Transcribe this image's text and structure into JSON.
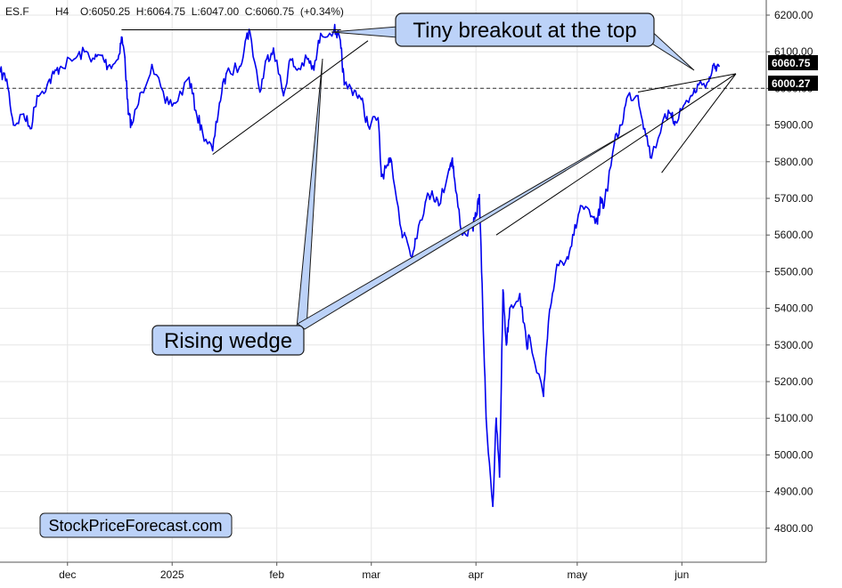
{
  "header": {
    "symbol": "ES.F",
    "timeframe": "H4",
    "ohlc": "O:6050.25  H:6064.75  L:6047.00  C:6060.75  (+0.34%)"
  },
  "colors": {
    "price_line": "#0000ee",
    "callout_fill": "#bcd2f8",
    "callout_border": "#1a1a1a",
    "badge_fill": "#000000",
    "grid": "#e6e6e6",
    "dashed_level": "#333333"
  },
  "callouts": {
    "breakout": "Tiny breakout at the top",
    "wedge": "Rising wedge"
  },
  "watermark": "StockPriceForecast.com",
  "chart_data": {
    "type": "line",
    "title": "",
    "xlabel": "",
    "ylabel": "",
    "ylim": [
      4760,
      6240
    ],
    "xlim": [
      "2024-11-11",
      "2025-06-26"
    ],
    "grid": true,
    "y_axis_position": "right",
    "y_ticks": [
      "6200.00",
      "6100.00",
      "6000.00",
      "5900.00",
      "5800.00",
      "5700.00",
      "5600.00",
      "5500.00",
      "5400.00",
      "5300.00",
      "5200.00",
      "5100.00",
      "5000.00",
      "4900.00",
      "4800.00"
    ],
    "x_ticks": [
      {
        "label": "dec",
        "date": "2024-12-01"
      },
      {
        "label": "2025",
        "date": "2025-01-01"
      },
      {
        "label": "feb",
        "date": "2025-02-01"
      },
      {
        "label": "mar",
        "date": "2025-03-01"
      },
      {
        "label": "apr",
        "date": "2025-04-01"
      },
      {
        "label": "may",
        "date": "2025-05-01"
      },
      {
        "label": "jun",
        "date": "2025-06-01"
      }
    ],
    "series": [
      {
        "color": "#0000ee",
        "points": [
          [
            "2024-11-11",
            6045
          ],
          [
            "2024-11-13",
            6025
          ],
          [
            "2024-11-15",
            5900
          ],
          [
            "2024-11-18",
            5930
          ],
          [
            "2024-11-20",
            5890
          ],
          [
            "2024-11-22",
            5980
          ],
          [
            "2024-11-25",
            6010
          ],
          [
            "2024-11-27",
            6040
          ],
          [
            "2024-11-29",
            6060
          ],
          [
            "2024-12-03",
            6080
          ],
          [
            "2024-12-06",
            6100
          ],
          [
            "2024-12-09",
            6080
          ],
          [
            "2024-12-11",
            6090
          ],
          [
            "2024-12-13",
            6060
          ],
          [
            "2024-12-16",
            6080
          ],
          [
            "2024-12-17",
            6140
          ],
          [
            "2024-12-18",
            6085
          ],
          [
            "2024-12-19",
            5930
          ],
          [
            "2024-12-20",
            5900
          ],
          [
            "2024-12-23",
            5990
          ],
          [
            "2024-12-26",
            6065
          ],
          [
            "2024-12-30",
            5960
          ],
          [
            "2025-01-02",
            5960
          ],
          [
            "2025-01-06",
            6030
          ],
          [
            "2025-01-08",
            5940
          ],
          [
            "2025-01-10",
            5880
          ],
          [
            "2025-01-13",
            5830
          ],
          [
            "2025-01-15",
            5960
          ],
          [
            "2025-01-17",
            6040
          ],
          [
            "2025-01-21",
            6060
          ],
          [
            "2025-01-23",
            6140
          ],
          [
            "2025-01-24",
            6155
          ],
          [
            "2025-01-27",
            5990
          ],
          [
            "2025-01-29",
            6080
          ],
          [
            "2025-01-31",
            6110
          ],
          [
            "2025-02-03",
            5980
          ],
          [
            "2025-02-05",
            6080
          ],
          [
            "2025-02-07",
            6050
          ],
          [
            "2025-02-10",
            6080
          ],
          [
            "2025-02-12",
            6050
          ],
          [
            "2025-02-14",
            6150
          ],
          [
            "2025-02-18",
            6160
          ],
          [
            "2025-02-19",
            6150
          ],
          [
            "2025-02-20",
            6110
          ],
          [
            "2025-02-21",
            6010
          ],
          [
            "2025-02-24",
            5995
          ],
          [
            "2025-02-26",
            5970
          ],
          [
            "2025-02-28",
            5900
          ],
          [
            "2025-03-03",
            5920
          ],
          [
            "2025-03-04",
            5760
          ],
          [
            "2025-03-06",
            5790
          ],
          [
            "2025-03-07",
            5800
          ],
          [
            "2025-03-10",
            5610
          ],
          [
            "2025-03-11",
            5600
          ],
          [
            "2025-03-13",
            5540
          ],
          [
            "2025-03-14",
            5590
          ],
          [
            "2025-03-17",
            5690
          ],
          [
            "2025-03-19",
            5720
          ],
          [
            "2025-03-21",
            5680
          ],
          [
            "2025-03-24",
            5780
          ],
          [
            "2025-03-25",
            5810
          ],
          [
            "2025-03-26",
            5720
          ],
          [
            "2025-03-28",
            5600
          ],
          [
            "2025-03-31",
            5620
          ],
          [
            "2025-04-01",
            5650
          ],
          [
            "2025-04-02",
            5710
          ],
          [
            "2025-04-03",
            5400
          ],
          [
            "2025-04-04",
            5100
          ],
          [
            "2025-04-06",
            4860
          ],
          [
            "2025-04-07",
            5100
          ],
          [
            "2025-04-08",
            4940
          ],
          [
            "2025-04-09",
            5450
          ],
          [
            "2025-04-10",
            5300
          ],
          [
            "2025-04-11",
            5400
          ],
          [
            "2025-04-14",
            5440
          ],
          [
            "2025-04-16",
            5300
          ],
          [
            "2025-04-17",
            5320
          ],
          [
            "2025-04-21",
            5160
          ],
          [
            "2025-04-22",
            5300
          ],
          [
            "2025-04-23",
            5400
          ],
          [
            "2025-04-25",
            5520
          ],
          [
            "2025-04-28",
            5540
          ],
          [
            "2025-04-30",
            5600
          ],
          [
            "2025-05-02",
            5680
          ],
          [
            "2025-05-05",
            5650
          ],
          [
            "2025-05-07",
            5630
          ],
          [
            "2025-05-08",
            5700
          ],
          [
            "2025-05-09",
            5680
          ],
          [
            "2025-05-12",
            5850
          ],
          [
            "2025-05-14",
            5900
          ],
          [
            "2025-05-16",
            5980
          ],
          [
            "2025-05-19",
            5980
          ],
          [
            "2025-05-21",
            5890
          ],
          [
            "2025-05-23",
            5810
          ],
          [
            "2025-05-27",
            5930
          ],
          [
            "2025-05-29",
            5920
          ],
          [
            "2025-05-30",
            5910
          ],
          [
            "2025-06-02",
            5960
          ],
          [
            "2025-06-04",
            5980
          ],
          [
            "2025-06-06",
            6010
          ],
          [
            "2025-06-09",
            6020
          ],
          [
            "2025-06-10",
            6050
          ],
          [
            "2025-06-11",
            6060
          ],
          [
            "2025-06-12",
            6060.75
          ]
        ]
      }
    ],
    "horizontal_lines": [
      {
        "y": 6000.27,
        "label": "6000.27",
        "style": "dashed"
      }
    ],
    "last_price_label": "6060.75",
    "trendlines": [
      {
        "from": [
          "2024-12-17",
          6160
        ],
        "to": [
          "2025-02-20",
          6160
        ]
      },
      {
        "from": [
          "2025-01-13",
          5820
        ],
        "to": [
          "2025-02-28",
          6130
        ]
      },
      {
        "from": [
          "2025-04-07",
          5600
        ],
        "to": [
          "2025-06-17",
          6040
        ]
      },
      {
        "from": [
          "2025-05-19",
          5990
        ],
        "to": [
          "2025-06-17",
          6040
        ]
      },
      {
        "from": [
          "2025-05-26",
          5770
        ],
        "to": [
          "2025-06-17",
          6040
        ]
      }
    ],
    "annotations": [
      {
        "text": "Tiny breakout at the top",
        "points_to": [
          "2025-06-14",
          6065
        ]
      },
      {
        "text": "Rising wedge",
        "points_to": [
          "2025-04-08",
          5600
        ]
      }
    ]
  }
}
